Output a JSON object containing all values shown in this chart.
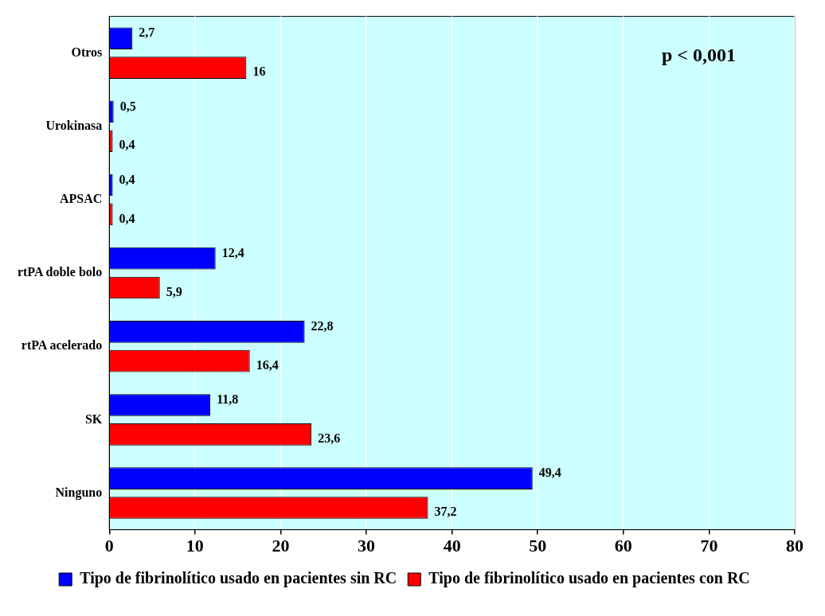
{
  "chart_data": {
    "type": "bar",
    "orientation": "horizontal",
    "categories": [
      "Otros",
      "Urokinasa",
      "APSAC",
      "rtPA doble bolo",
      "rtPA acelerado",
      "SK",
      "Ninguno"
    ],
    "series": [
      {
        "name": "Tipo de fibrinolítico usado en pacientes sin RC",
        "color": "#0000ff",
        "values": [
          2.7,
          0.5,
          0.4,
          12.4,
          22.8,
          11.8,
          49.4
        ],
        "value_labels": [
          "2,7",
          "0,5",
          "0,4",
          "12,4",
          "22,8",
          "11,8",
          "49,4"
        ]
      },
      {
        "name": "Tipo de fibrinolítico usado en pacientes con RC",
        "color": "#ff0000",
        "values": [
          16,
          0.4,
          0.4,
          5.9,
          16.4,
          23.6,
          37.2
        ],
        "value_labels": [
          "16",
          "0,4",
          "0,4",
          "5,9",
          "16,4",
          "23,6",
          "37,2"
        ]
      }
    ],
    "xlim": [
      0,
      80
    ],
    "xticks": [
      0,
      10,
      20,
      30,
      40,
      50,
      60,
      70,
      80
    ],
    "grid": "x",
    "legend": "bottom",
    "annotations": [
      "p < 0,001"
    ]
  }
}
